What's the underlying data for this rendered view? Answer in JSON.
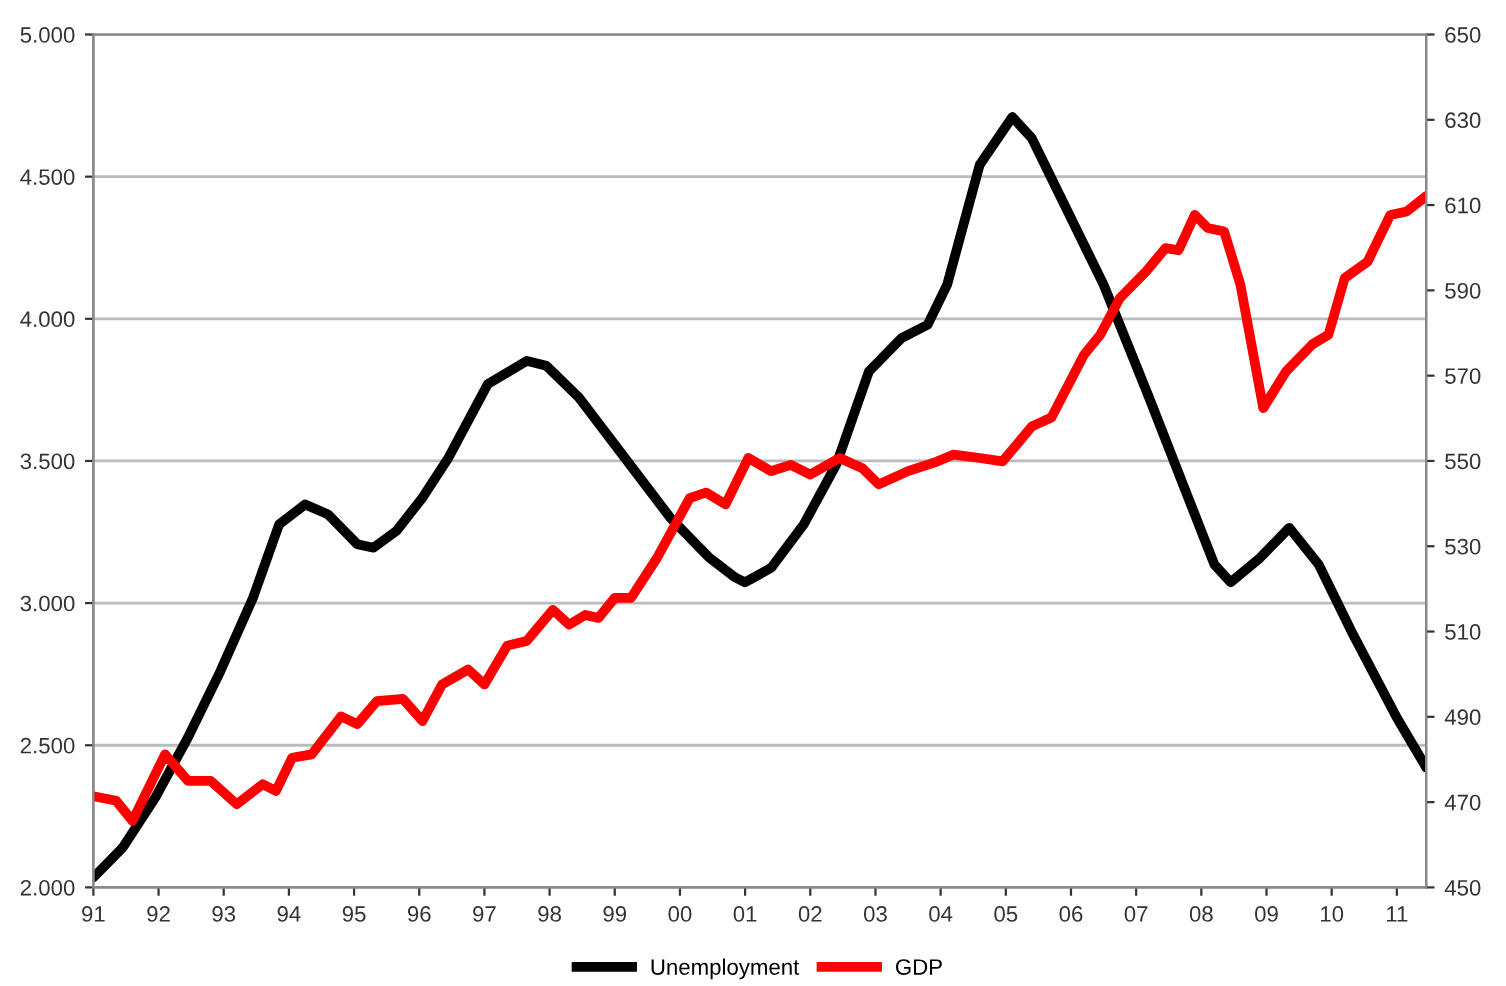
{
  "chart_data": {
    "type": "line",
    "legend": "bottom",
    "grid": "y",
    "line_style": "solid",
    "marker": "none",
    "xlim": [
      1991,
      2011.45
    ],
    "xticks": [
      {
        "value": 1991,
        "label": "91"
      },
      {
        "value": 1992,
        "label": "92"
      },
      {
        "value": 1993,
        "label": "93"
      },
      {
        "value": 1994,
        "label": "94"
      },
      {
        "value": 1995,
        "label": "95"
      },
      {
        "value": 1996,
        "label": "96"
      },
      {
        "value": 1997,
        "label": "97"
      },
      {
        "value": 1998,
        "label": "98"
      },
      {
        "value": 1999,
        "label": "99"
      },
      {
        "value": 2000,
        "label": "00"
      },
      {
        "value": 2001,
        "label": "01"
      },
      {
        "value": 2002,
        "label": "02"
      },
      {
        "value": 2003,
        "label": "03"
      },
      {
        "value": 2004,
        "label": "04"
      },
      {
        "value": 2005,
        "label": "05"
      },
      {
        "value": 2006,
        "label": "06"
      },
      {
        "value": 2007,
        "label": "07"
      },
      {
        "value": 2008,
        "label": "08"
      },
      {
        "value": 2009,
        "label": "09"
      },
      {
        "value": 2010,
        "label": "10"
      },
      {
        "value": 2011,
        "label": "11"
      }
    ],
    "ylim": [
      2000,
      5000
    ],
    "yticks": [
      {
        "value": 2000,
        "label": "2.000"
      },
      {
        "value": 2500,
        "label": "2.500"
      },
      {
        "value": 3000,
        "label": "3.000"
      },
      {
        "value": 3500,
        "label": "3.500"
      },
      {
        "value": 4000,
        "label": "4.000"
      },
      {
        "value": 4500,
        "label": "4.500"
      },
      {
        "value": 5000,
        "label": "5.000"
      }
    ],
    "y2lim": [
      450,
      650
    ],
    "y2ticks": [
      450,
      470,
      490,
      510,
      530,
      550,
      570,
      590,
      610,
      630,
      650
    ],
    "series": [
      {
        "name": "Unemployment",
        "color": "#000000",
        "axis": "y",
        "x": [
          1991.0,
          1991.45,
          1991.95,
          1992.45,
          1992.95,
          1993.45,
          1993.85,
          1994.25,
          1994.6,
          1995.05,
          1995.3,
          1995.65,
          1996.05,
          1996.45,
          1997.05,
          1997.65,
          1997.95,
          1998.45,
          1999.15,
          1999.85,
          2000.45,
          2000.85,
          2001.0,
          2001.4,
          2001.9,
          2002.4,
          2002.9,
          2003.4,
          2003.8,
          2004.1,
          2004.6,
          2005.1,
          2005.4,
          2005.9,
          2006.5,
          2007.2,
          2007.8,
          2008.2,
          2008.45,
          2008.9,
          2009.35,
          2009.8,
          2010.3,
          2011.0,
          2011.45
        ],
        "values": [
          2035,
          2140,
          2316,
          2527,
          2761,
          3019,
          3277,
          3347,
          3312,
          3207,
          3195,
          3254,
          3371,
          3512,
          3770,
          3852,
          3835,
          3723,
          3512,
          3301,
          3160,
          3090,
          3073,
          3124,
          3277,
          3488,
          3815,
          3932,
          3979,
          4120,
          4542,
          4710,
          4635,
          4401,
          4120,
          3722,
          3370,
          3136,
          3073,
          3159,
          3265,
          3136,
          2902,
          2597,
          2422
        ]
      },
      {
        "name": "GDP",
        "color": "#ff0000",
        "axis": "y2",
        "x": [
          1991.0,
          1991.35,
          1991.6,
          1992.1,
          1992.45,
          1992.8,
          1993.2,
          1993.6,
          1993.8,
          1994.05,
          1994.35,
          1994.8,
          1995.05,
          1995.35,
          1995.75,
          1996.05,
          1996.35,
          1996.75,
          1997.0,
          1997.35,
          1997.65,
          1998.05,
          1998.3,
          1998.55,
          1998.75,
          1999.0,
          1999.25,
          1999.65,
          2000.15,
          2000.4,
          2000.7,
          2001.05,
          2001.4,
          2001.7,
          2002.0,
          2002.45,
          2002.8,
          2003.05,
          2003.5,
          2003.9,
          2004.2,
          2004.6,
          2004.95,
          2005.4,
          2005.7,
          2006.2,
          2006.45,
          2006.75,
          2007.15,
          2007.45,
          2007.65,
          2007.9,
          2008.1,
          2008.35,
          2008.6,
          2008.95,
          2009.3,
          2009.7,
          2009.95,
          2010.2,
          2010.55,
          2010.9,
          2011.15,
          2011.45
        ],
        "values": [
          471.4,
          470.3,
          465.6,
          481.2,
          475.0,
          475.0,
          469.5,
          474.2,
          472.6,
          480.4,
          481.2,
          490.1,
          488.3,
          493.7,
          494.2,
          489.0,
          497.6,
          501.1,
          497.6,
          506.7,
          507.8,
          515.1,
          511.6,
          513.9,
          513.2,
          517.9,
          517.9,
          527.3,
          541.3,
          542.6,
          539.8,
          550.7,
          547.6,
          549.1,
          546.8,
          550.7,
          548.3,
          544.5,
          547.6,
          549.6,
          551.5,
          550.7,
          549.9,
          558.1,
          560.2,
          574.9,
          579.6,
          588.2,
          594.4,
          599.9,
          599.4,
          607.7,
          604.6,
          603.8,
          591.3,
          562.4,
          571.0,
          577.3,
          579.6,
          592.9,
          596.7,
          607.7,
          608.5,
          612.1
        ]
      }
    ]
  }
}
